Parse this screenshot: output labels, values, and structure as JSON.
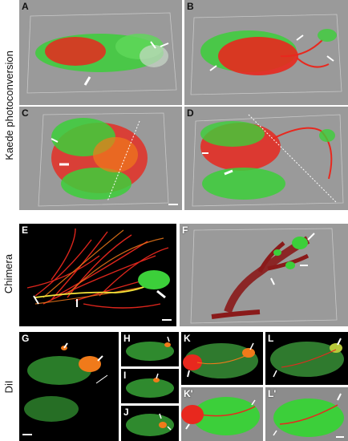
{
  "figure": {
    "row_labels": {
      "kaede": "Kaede photoconversion",
      "chimera": "Chimera",
      "dil": "DiI"
    },
    "panels": {
      "A": "A",
      "B": "B",
      "C": "C",
      "D": "D",
      "E": "E",
      "F": "F",
      "G": "G",
      "H": "H",
      "I": "I",
      "J": "J",
      "K": "K",
      "L": "L",
      "K2": "K'",
      "L2": "L'"
    },
    "colors": {
      "green": "#3ccf3a",
      "red": "#e8281e",
      "orange": "#f07a1a",
      "gray_bg": "#9a9a9a",
      "black_bg": "#000000"
    }
  }
}
